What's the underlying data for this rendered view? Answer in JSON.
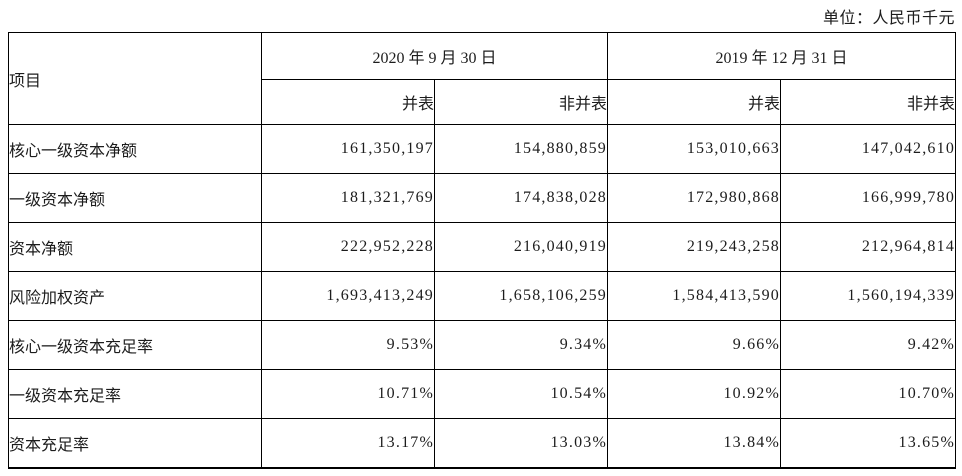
{
  "unit_note": "单位：人民币千元",
  "table": {
    "headers": {
      "item": "项目",
      "date_2020": "2020 年 9 月 30 日",
      "date_2019": "2019 年 12 月 31 日",
      "sub": [
        "并表",
        "非并表",
        "并表",
        "非并表"
      ]
    },
    "rows": [
      {
        "label": "核心一级资本净额",
        "values": [
          "161,350,197",
          "154,880,859",
          "153,010,663",
          "147,042,610"
        ]
      },
      {
        "label": "一级资本净额",
        "values": [
          "181,321,769",
          "174,838,028",
          "172,980,868",
          "166,999,780"
        ]
      },
      {
        "label": "资本净额",
        "values": [
          "222,952,228",
          "216,040,919",
          "219,243,258",
          "212,964,814"
        ]
      },
      {
        "label": "风险加权资产",
        "values": [
          "1,693,413,249",
          "1,658,106,259",
          "1,584,413,590",
          "1,560,194,339"
        ]
      },
      {
        "label": "核心一级资本充足率",
        "values": [
          "9.53%",
          "9.34%",
          "9.66%",
          "9.42%"
        ]
      },
      {
        "label": "一级资本充足率",
        "values": [
          "10.71%",
          "10.54%",
          "10.92%",
          "10.70%"
        ]
      },
      {
        "label": "资本充足率",
        "values": [
          "13.17%",
          "13.03%",
          "13.84%",
          "13.65%"
        ]
      }
    ]
  }
}
